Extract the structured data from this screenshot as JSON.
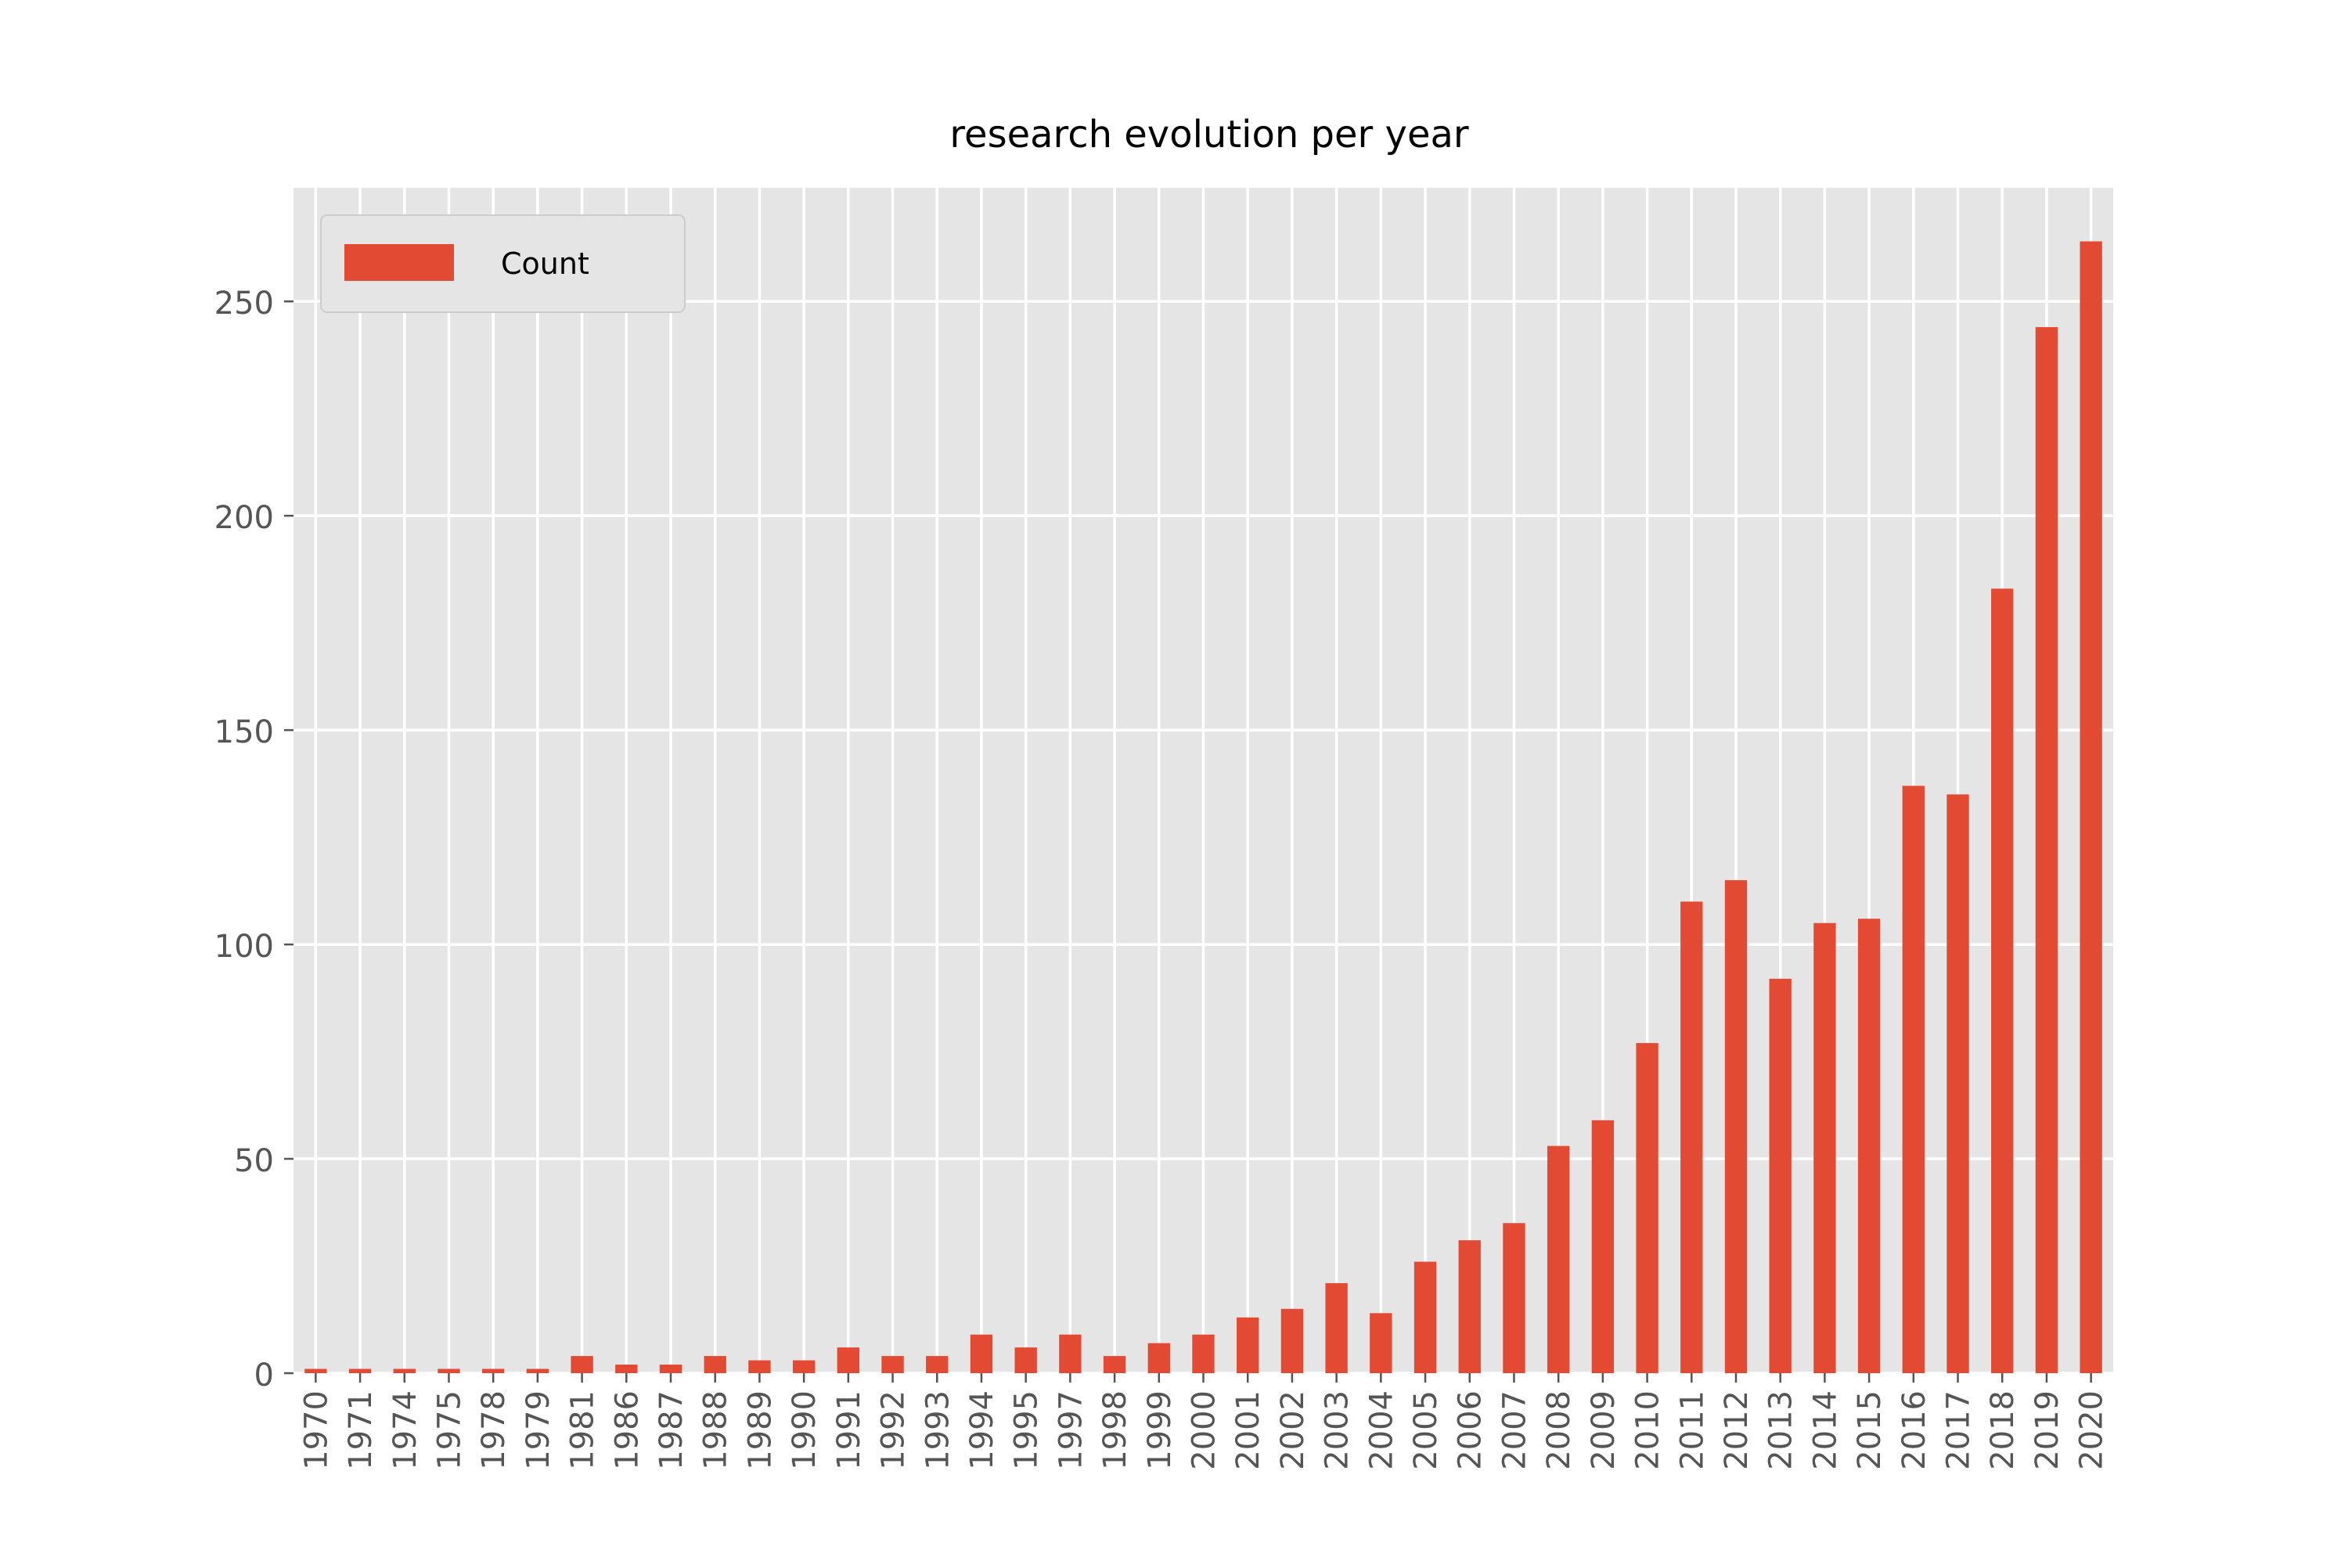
{
  "chart_data": {
    "type": "bar",
    "title": "research evolution per year",
    "xlabel": "",
    "ylabel": "",
    "categories": [
      "1970",
      "1971",
      "1974",
      "1975",
      "1978",
      "1979",
      "1981",
      "1986",
      "1987",
      "1988",
      "1989",
      "1990",
      "1991",
      "1992",
      "1993",
      "1994",
      "1995",
      "1997",
      "1998",
      "1999",
      "2000",
      "2001",
      "2002",
      "2003",
      "2004",
      "2005",
      "2006",
      "2007",
      "2008",
      "2009",
      "2010",
      "2011",
      "2012",
      "2013",
      "2014",
      "2015",
      "2016",
      "2017",
      "2018",
      "2019",
      "2020"
    ],
    "series": [
      {
        "name": "Count",
        "values": [
          1,
          1,
          1,
          1,
          1,
          1,
          4,
          2,
          2,
          4,
          3,
          3,
          6,
          4,
          4,
          9,
          6,
          9,
          4,
          7,
          9,
          13,
          15,
          21,
          14,
          26,
          31,
          35,
          53,
          59,
          77,
          110,
          115,
          92,
          105,
          106,
          137,
          135,
          183,
          244,
          264
        ]
      }
    ],
    "ylim": [
      0,
      276.5
    ],
    "yticks": [
      0,
      50,
      100,
      150,
      200,
      250
    ],
    "grid": true,
    "legend": "top-left",
    "colors": {
      "bar": "#E24A33",
      "plot_background": "#E5E5E5",
      "grid": "#FFFFFF",
      "tick_label": "#555555",
      "title": "#000000"
    }
  }
}
